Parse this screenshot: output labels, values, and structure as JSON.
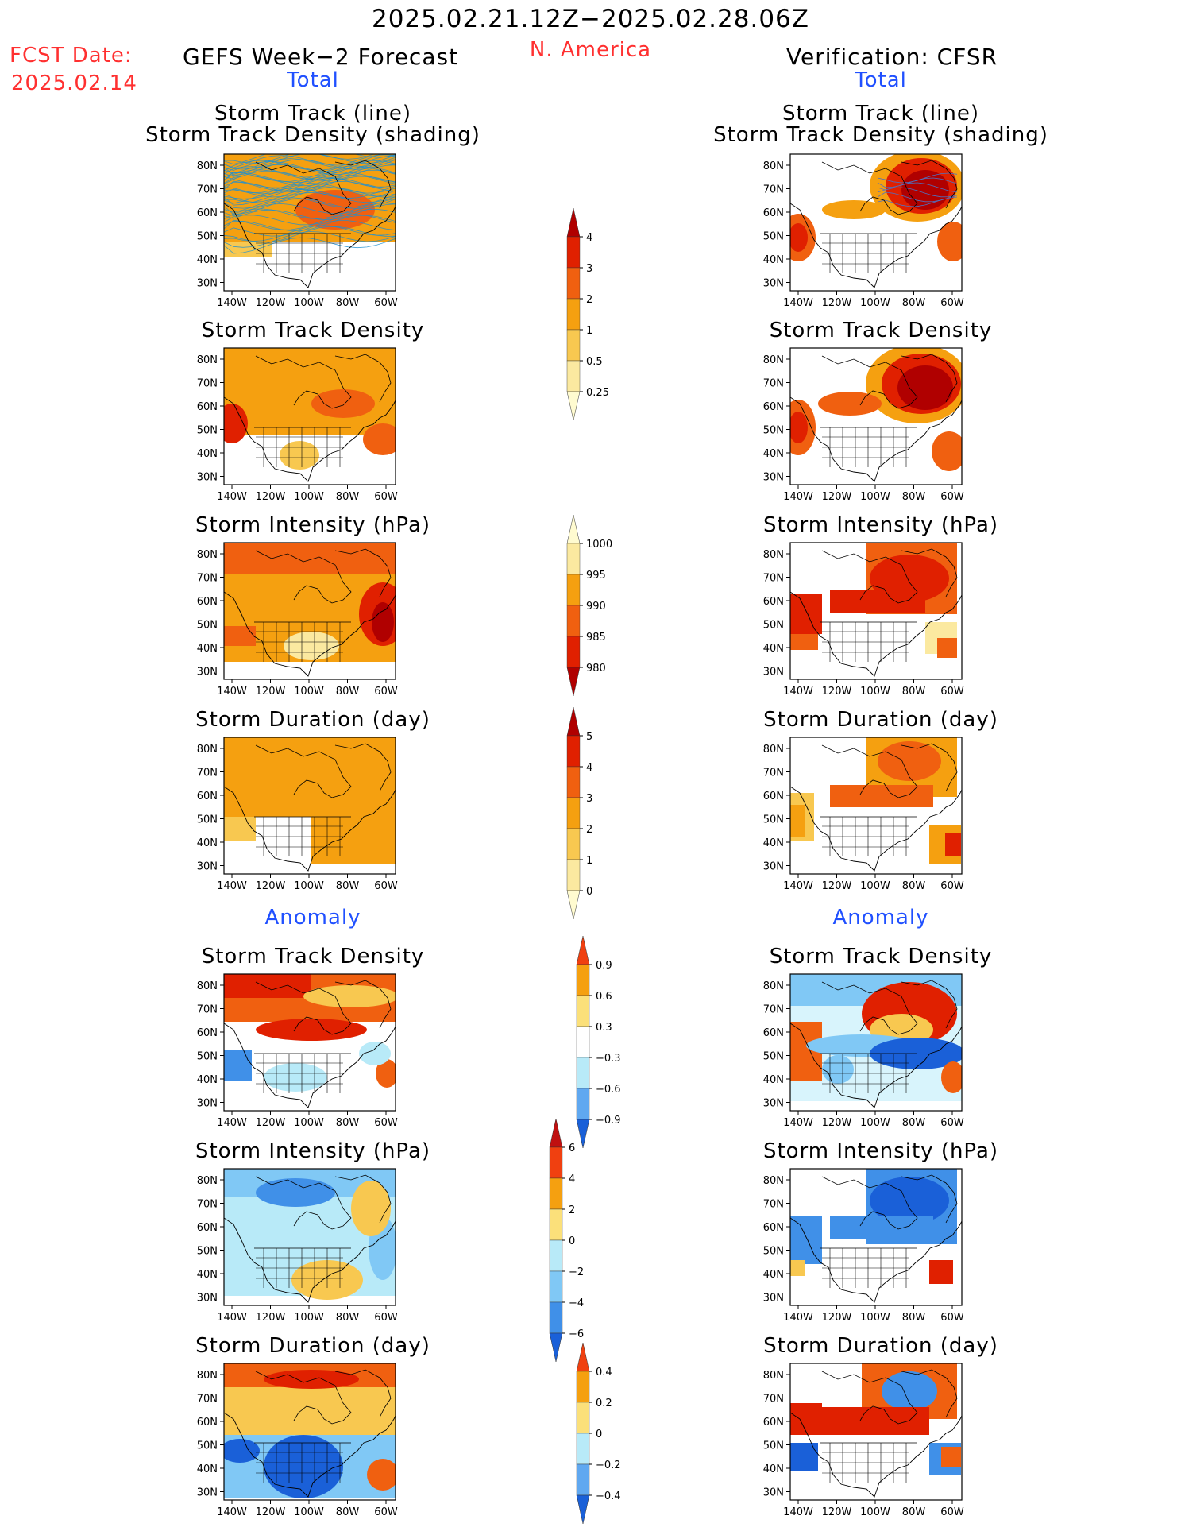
{
  "header": {
    "main_title": "2025.02.21.12Z−2025.02.28.06Z",
    "region": "N. America",
    "fcst_label": "FCST Date:",
    "fcst_date": "2025.02.14",
    "left_title": "GEFS Week−2 Forecast",
    "right_title": "Verification: CFSR",
    "left_total": "Total",
    "right_total": "Total",
    "left_anomaly": "Anomaly",
    "right_anomaly": "Anomaly"
  },
  "panels": {
    "p1": {
      "title1": "Storm Track (line)",
      "title2": "Storm Track Density (shading)"
    },
    "p2": {
      "title1": "Storm Track Density"
    },
    "p3": {
      "title1": "Storm Intensity (hPa)"
    },
    "p4": {
      "title1": "Storm Duration (day)"
    },
    "p5": {
      "title1": "Storm Track Density"
    },
    "p6": {
      "title1": "Storm Intensity (hPa)"
    },
    "p7": {
      "title1": "Storm Duration (day)"
    }
  },
  "axes": {
    "lat_labels": [
      "80N",
      "70N",
      "60N",
      "50N",
      "40N",
      "30N"
    ],
    "lon_labels": [
      "140W",
      "120W",
      "100W",
      "80W",
      "60W"
    ]
  },
  "colorbars": [
    {
      "id": "density",
      "labels": [
        "4",
        "3",
        "2",
        "1",
        "0.5",
        "0.25"
      ],
      "colors": [
        "#b00000",
        "#e02000",
        "#f06010",
        "#f5a010",
        "#f8c850",
        "#fbe9a0",
        "#fffbd0"
      ],
      "orientation": "up"
    },
    {
      "id": "intensity",
      "labels": [
        "1000",
        "995",
        "990",
        "985",
        "980"
      ],
      "colors": [
        "#fffbd0",
        "#fbe9a0",
        "#f5a010",
        "#f06010",
        "#e02000",
        "#b00000"
      ],
      "orientation": "down"
    },
    {
      "id": "duration",
      "labels": [
        "5",
        "4",
        "3",
        "2",
        "1",
        "0"
      ],
      "colors": [
        "#b00000",
        "#e02000",
        "#f06010",
        "#f5a010",
        "#f8c850",
        "#fbe9a0",
        "#fffbd0"
      ],
      "orientation": "up"
    },
    {
      "id": "density-anom",
      "labels": [
        "0.9",
        "0.6",
        "0.3",
        "−0.3",
        "−0.6",
        "−0.9"
      ],
      "colors": [
        "#f04010",
        "#f5a010",
        "#fbe07a",
        "#ffffff",
        "#b8eaf8",
        "#60a8f0",
        "#1a60d8"
      ],
      "orientation": "both"
    },
    {
      "id": "intensity-anom",
      "labels": [
        "6",
        "4",
        "2",
        "0",
        "−2",
        "−4",
        "−6"
      ],
      "colors": [
        "#c01010",
        "#f04010",
        "#f5a010",
        "#fbe07a",
        "#b8eaf8",
        "#80c8f5",
        "#4090e8",
        "#1a60d8"
      ],
      "orientation": "both"
    },
    {
      "id": "duration-anom",
      "labels": [
        "0.4",
        "0.2",
        "0",
        "−0.2",
        "−0.4"
      ],
      "colors": [
        "#f04010",
        "#f5a010",
        "#fbe07a",
        "#b8eaf8",
        "#60a8f0",
        "#1a60d8"
      ],
      "orientation": "both"
    }
  ],
  "colors": {
    "red_text": "#ff3030",
    "blue_text": "#2050ff",
    "track_line": "#1e8fd0"
  }
}
